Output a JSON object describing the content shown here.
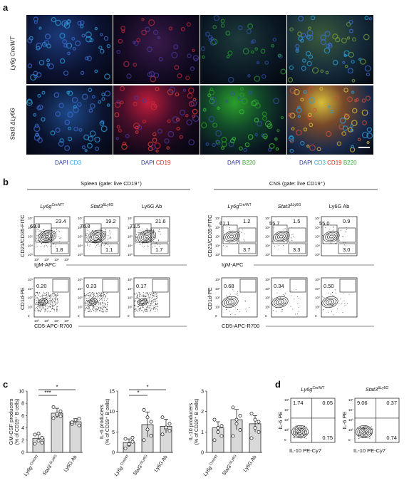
{
  "panels": {
    "a": "a",
    "b": "b",
    "c": "c",
    "d": "d"
  },
  "panel_a": {
    "rows": [
      "Ly6g Cre/WT",
      "Stat3 ΔLy6G"
    ],
    "stain_labels": [
      {
        "dapi": "DAPI",
        "marker": "CD3",
        "marker_color": "#29a3d9"
      },
      {
        "dapi": "DAPI",
        "marker": "CD19",
        "marker_color": "#e0261d"
      },
      {
        "dapi": "DAPI",
        "marker": "B220",
        "marker_color": "#3aa535"
      },
      {
        "dapi": "DAPI",
        "m1": "CD3",
        "m2": "CD19",
        "m3": "B220"
      }
    ],
    "colors": {
      "dapi": "#2e3a9e",
      "cd3": "#29a3d9",
      "cd19": "#e0261d",
      "b220": "#3aa535"
    }
  },
  "panel_b": {
    "spleen_header": "Spleen (gate: live CD19⁺)",
    "cns_header": "CNS (gate: live CD19⁺)",
    "col_titles": [
      "Ly6g Cre/WT",
      "Stat3 ΔLy6G",
      "Ly6G Ab"
    ],
    "top_y_label": "CD21/CD35-FITC",
    "top_x_label": "IgM-APC",
    "bottom_y_label": "CD1d-PE",
    "bottom_x_label": "CD5-APC-R700",
    "spleen_top": [
      {
        "tl": "69.8",
        "tr": "23.4",
        "br": "1.8"
      },
      {
        "tl": "76.8",
        "tr": "19.2",
        "br": "1.1"
      },
      {
        "tl": "71.5",
        "tr": "21.6",
        "br": "1.7"
      }
    ],
    "cns_top": [
      {
        "tl": "61.1",
        "tr": "1.2",
        "br": "3.7"
      },
      {
        "tl": "55.7",
        "tr": "1.5",
        "br": "3.3"
      },
      {
        "tl": "55.0",
        "tr": "0.9",
        "br": "3.0"
      }
    ],
    "spleen_bottom": [
      "0.20",
      "0.23",
      "0.17"
    ],
    "cns_bottom": [
      "0.68",
      "0.34",
      "0.50"
    ]
  },
  "panel_c": {
    "categories": [
      "Ly6g Cre/WT",
      "Stat3 ΔLy6G",
      "Ly6G Ab"
    ],
    "charts": [
      {
        "ylabel1": "GM-CSF producers",
        "ylabel2": "(% of CD19⁺ B cells)",
        "yticks": [
          "0",
          "2",
          "4",
          "6",
          "8",
          "10"
        ],
        "ymax": 10,
        "means": [
          2.3,
          6.4,
          5.0
        ],
        "errors": [
          0.6,
          0.8,
          0.5
        ],
        "points": [
          [
            1.4,
            1.9,
            2.4,
            2.9,
            3.1,
            1.6
          ],
          [
            5.6,
            6.1,
            6.7,
            7.4,
            6.3,
            5.9
          ],
          [
            4.6,
            5.1,
            5.5,
            4.9,
            5.3,
            4.4
          ]
        ],
        "sig": [
          "***",
          "*"
        ]
      },
      {
        "ylabel1": "IL-6 producers",
        "ylabel2": "(% of CD19⁺ B cells)",
        "yticks": [
          "0",
          "5",
          "10",
          "15"
        ],
        "ymax": 15,
        "means": [
          2.4,
          6.8,
          6.4
        ],
        "errors": [
          0.9,
          3.1,
          1.7
        ],
        "points": [
          [
            1.0,
            1.8,
            2.6,
            3.3,
            2.0,
            3.6
          ],
          [
            3.0,
            5.6,
            7.5,
            10.4,
            8.6,
            4.1
          ],
          [
            4.4,
            5.8,
            7.0,
            8.6,
            6.1,
            5.3
          ]
        ],
        "sig": [
          "*",
          "*"
        ]
      },
      {
        "ylabel1": "IL-10 producers",
        "ylabel2": "(% of CD19⁺ B cells)",
        "yticks": [
          "0",
          "1",
          "2",
          "3"
        ],
        "ymax": 3,
        "means": [
          1.2,
          1.6,
          1.4
        ],
        "errors": [
          0.3,
          0.5,
          0.4
        ],
        "points": [
          [
            0.6,
            1.0,
            1.3,
            1.6,
            1.2,
            0.8
          ],
          [
            0.8,
            1.4,
            1.8,
            2.2,
            1.6,
            1.1
          ],
          [
            0.7,
            1.2,
            1.5,
            1.9,
            1.6,
            1.0
          ]
        ],
        "sig": []
      }
    ]
  },
  "panel_d": {
    "titles": [
      "Ly6g Cre/WT",
      "Stat3 ΔLy6G"
    ],
    "y_label": "IL-6 PE",
    "x_label": "IL-10 PE-Cy7",
    "quadrants": [
      {
        "tl": "1.74",
        "tr": "0.05",
        "br": "0.75"
      },
      {
        "tl": "9.06",
        "tr": "0.37",
        "br": "0.74"
      }
    ]
  }
}
